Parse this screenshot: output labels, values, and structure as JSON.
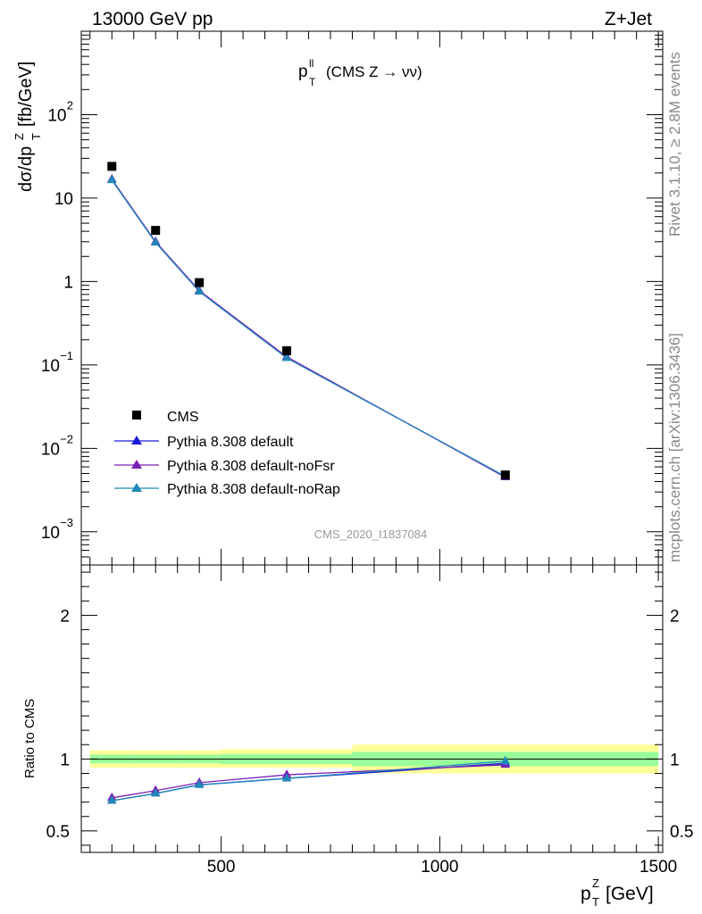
{
  "header": {
    "left": "13000 GeV pp",
    "right": "Z+Jet"
  },
  "title_main": "p",
  "title_sup": "ll",
  "title_sub": "T",
  "title_rest": "(CMS Z → νν)",
  "ylabel_main": "dσ/dp",
  "ylabel_sup": "Z",
  "ylabel_sub": "T",
  "ylabel_units": "[fb/GeV]",
  "xlabel_main": "p",
  "xlabel_sup": "Z",
  "xlabel_sub": "T",
  "xlabel_units": "[GeV]",
  "ratio_label": "Ratio to CMS",
  "watermark": "CMS_2020_I1837084",
  "side_rivet": "Rivet 3.1.10, ≥ 2.8M events",
  "side_mcplots": "mcplots.cern.ch [arXiv:1306.3436]",
  "chart_data": {
    "type": "line",
    "xlim": [
      180,
      1510
    ],
    "main": {
      "yscale": "log",
      "ylim": [
        0.0004,
        1000
      ],
      "yticks": [
        {
          "v": 0.001,
          "base": "10",
          "exp": "−3"
        },
        {
          "v": 0.01,
          "base": "10",
          "exp": "−2"
        },
        {
          "v": 0.1,
          "base": "10",
          "exp": "−1"
        },
        {
          "v": 1,
          "base": "1",
          "exp": ""
        },
        {
          "v": 10,
          "base": "10",
          "exp": ""
        },
        {
          "v": 100,
          "base": "10",
          "exp": "2"
        }
      ],
      "data": {
        "name": "CMS",
        "color": "#000000",
        "x": [
          250,
          350,
          450,
          650,
          1150
        ],
        "y": [
          24,
          4.1,
          0.97,
          0.148,
          0.0048
        ]
      },
      "series": [
        {
          "name": "Pythia 8.308 default",
          "color": "#1a1ad6",
          "x": [
            250,
            350,
            450,
            650,
            1150
          ],
          "y": [
            16.5,
            2.95,
            0.76,
            0.122,
            0.0046
          ]
        },
        {
          "name": "Pythia 8.308 default-noFsr",
          "color": "#7a1fb5",
          "x": [
            250,
            350,
            450,
            650,
            1150
          ],
          "y": [
            16.8,
            3.0,
            0.78,
            0.125,
            0.0045
          ]
        },
        {
          "name": "Pythia 8.308 default-noRap",
          "color": "#1f88b8",
          "x": [
            250,
            350,
            450,
            650,
            1150
          ],
          "y": [
            16.4,
            2.93,
            0.76,
            0.121,
            0.0046
          ]
        }
      ]
    },
    "ratio": {
      "ylim": [
        0.35,
        2.35
      ],
      "yticks": [
        "0.5",
        "1",
        "2"
      ],
      "yticks_v": [
        0.5,
        1,
        2
      ],
      "bands": [
        {
          "x0": 200,
          "x1": 300,
          "yellow": [
            0.94,
            1.06
          ],
          "green": [
            0.97,
            1.03
          ]
        },
        {
          "x0": 300,
          "x1": 400,
          "yellow": [
            0.94,
            1.06
          ],
          "green": [
            0.97,
            1.03
          ]
        },
        {
          "x0": 400,
          "x1": 500,
          "yellow": [
            0.94,
            1.06
          ],
          "green": [
            0.97,
            1.03
          ]
        },
        {
          "x0": 500,
          "x1": 800,
          "yellow": [
            0.94,
            1.07
          ],
          "green": [
            0.965,
            1.035
          ]
        },
        {
          "x0": 800,
          "x1": 1500,
          "yellow": [
            0.9,
            1.1
          ],
          "green": [
            0.95,
            1.05
          ]
        }
      ],
      "series": [
        {
          "name": "Pythia 8.308 default",
          "color": "#1a1ad6",
          "x": [
            250,
            350,
            450,
            650,
            1150
          ],
          "y": [
            0.71,
            0.76,
            0.82,
            0.865,
            0.97
          ]
        },
        {
          "name": "Pythia 8.308 default-noFsr",
          "color": "#7a1fb5",
          "x": [
            250,
            350,
            450,
            650,
            1150
          ],
          "y": [
            0.73,
            0.78,
            0.835,
            0.89,
            0.96
          ]
        },
        {
          "name": "Pythia 8.308 default-noRap",
          "color": "#1f88b8",
          "x": [
            250,
            350,
            450,
            650,
            1150
          ],
          "y": [
            0.71,
            0.76,
            0.82,
            0.865,
            0.985
          ]
        }
      ]
    },
    "xticks": [
      500,
      1000,
      1500
    ],
    "legend_position": "bottom-left",
    "grid": false
  }
}
